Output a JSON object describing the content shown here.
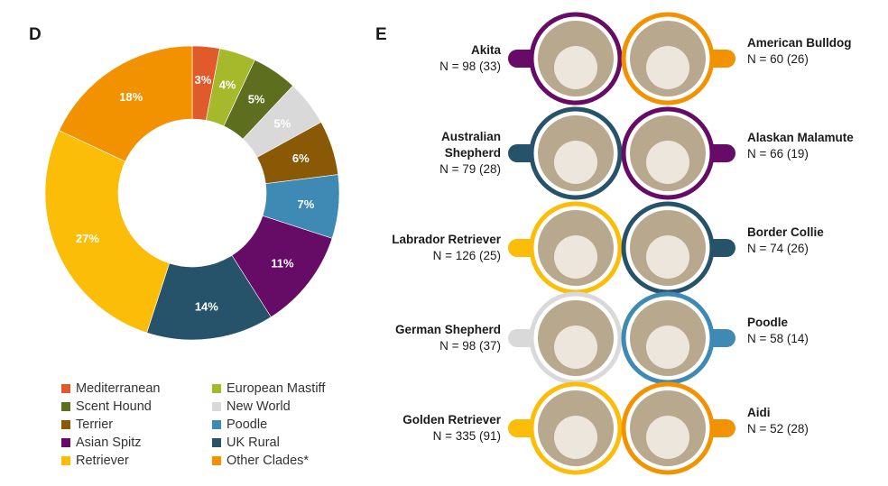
{
  "panels": {
    "d_label": "D",
    "e_label": "E"
  },
  "chart_data": {
    "type": "pie",
    "donut": true,
    "start": "top",
    "direction": "clockwise",
    "categories": [
      "Mediterranean",
      "European Mastiff",
      "Scent Hound",
      "New World",
      "Terrier",
      "Poodle",
      "Asian Spitz",
      "UK Rural",
      "Retriever",
      "Other Clades*"
    ],
    "values": [
      3,
      4,
      5,
      5,
      6,
      7,
      11,
      14,
      27,
      18
    ],
    "data_labels": [
      "3%",
      "4%",
      "5%",
      "5%",
      "6%",
      "7%",
      "11%",
      "14%",
      "27%",
      "18%"
    ],
    "colors": [
      "#e05a2b",
      "#a6b92b",
      "#5d6f1f",
      "#d9d9d9",
      "#8a5905",
      "#3f8ab4",
      "#660b66",
      "#26536a",
      "#fbbd08",
      "#f39200"
    ],
    "legend_position": "bottom",
    "legend_order": [
      "Mediterranean",
      "European Mastiff",
      "Scent Hound",
      "New World",
      "Terrier",
      "Poodle",
      "Asian Spitz",
      "UK Rural",
      "Retriever",
      "Other Clades*"
    ]
  },
  "breeds": [
    {
      "name": "Akita",
      "n": "N = 98 (33)",
      "color": "#660b66",
      "side": "left"
    },
    {
      "name": "American Bulldog",
      "n": "N = 60 (26)",
      "color": "#f39200",
      "side": "right"
    },
    {
      "name": "Australian Shepherd",
      "n": "N = 79 (28)",
      "color": "#26536a",
      "side": "left"
    },
    {
      "name": "Alaskan Malamute",
      "n": "N = 66 (19)",
      "color": "#660b66",
      "side": "right"
    },
    {
      "name": "Labrador Retriever",
      "n": "N = 126 (25)",
      "color": "#fbbd08",
      "side": "left"
    },
    {
      "name": "Border Collie",
      "n": "N = 74 (26)",
      "color": "#26536a",
      "side": "right"
    },
    {
      "name": "German Shepherd",
      "n": "N = 98 (37)",
      "color": "#d9d9d9",
      "side": "left"
    },
    {
      "name": "Poodle",
      "n": "N = 58 (14)",
      "color": "#3f8ab4",
      "side": "right"
    },
    {
      "name": "Golden Retriever",
      "n": "N = 335 (91)",
      "color": "#fbbd08",
      "side": "left"
    },
    {
      "name": "Aidi",
      "n": "N = 52 (28)",
      "color": "#f39200",
      "side": "right"
    }
  ]
}
